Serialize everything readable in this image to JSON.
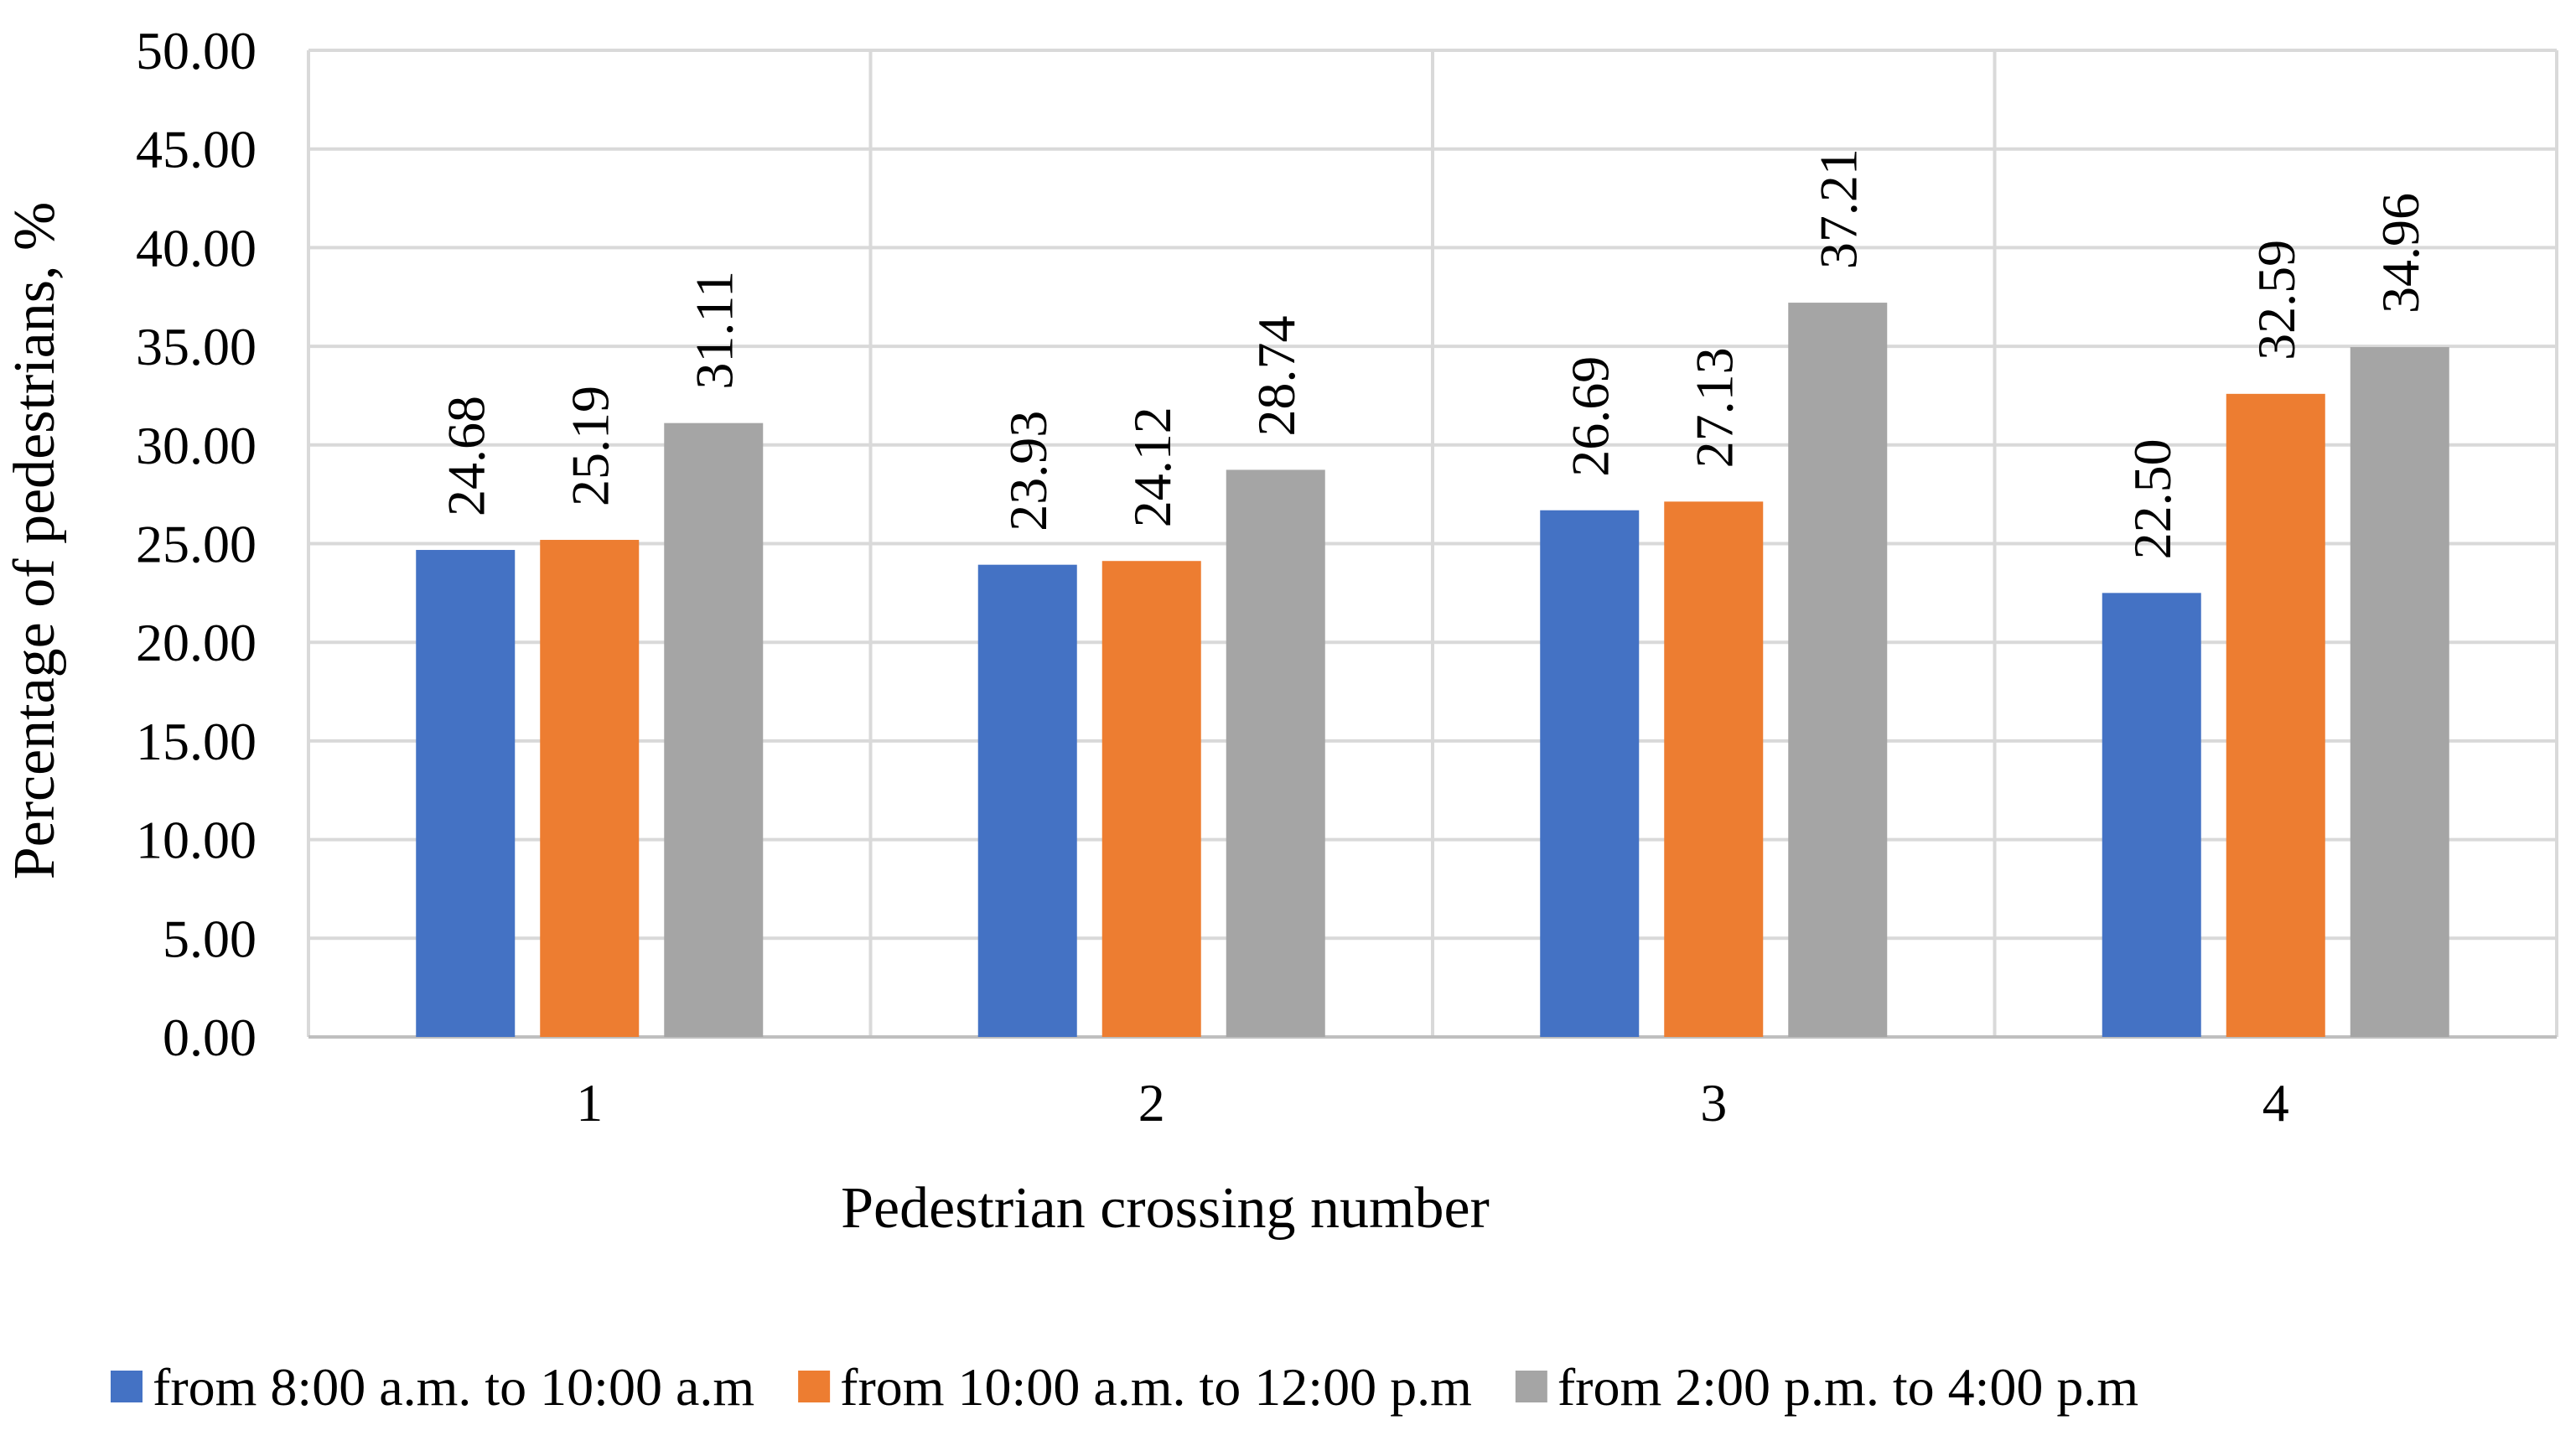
{
  "chart_data": {
    "type": "bar",
    "title": "",
    "xlabel": "Pedestrian crossing number",
    "ylabel": "Percentage of pedestrians, %",
    "ylim": [
      0,
      50
    ],
    "ytick_step": 5,
    "ytick_labels": [
      "0.00",
      "5.00",
      "10.00",
      "15.00",
      "20.00",
      "25.00",
      "30.00",
      "35.00",
      "40.00",
      "45.00",
      "50.00"
    ],
    "categories": [
      "1",
      "2",
      "3",
      "4"
    ],
    "series": [
      {
        "name": "from 8:00 a.m. to 10:00 a.m",
        "color": "#4472C4",
        "values": [
          24.68,
          23.93,
          26.69,
          22.5
        ],
        "labels": [
          "24.68",
          "23.93",
          "26.69",
          "22.50"
        ]
      },
      {
        "name": "from 10:00 a.m. to 12:00 p.m",
        "color": "#ED7D31",
        "values": [
          25.19,
          24.12,
          27.13,
          32.59
        ],
        "labels": [
          "25.19",
          "24.12",
          "27.13",
          "32.59"
        ]
      },
      {
        "name": "from 2:00 p.m. to 4:00 p.m",
        "color": "#A5A5A5",
        "values": [
          31.11,
          28.74,
          37.21,
          34.96
        ],
        "labels": [
          "31.11",
          "28.74",
          "37.21",
          "34.96"
        ]
      }
    ],
    "grid": true,
    "legend": "bottom"
  }
}
